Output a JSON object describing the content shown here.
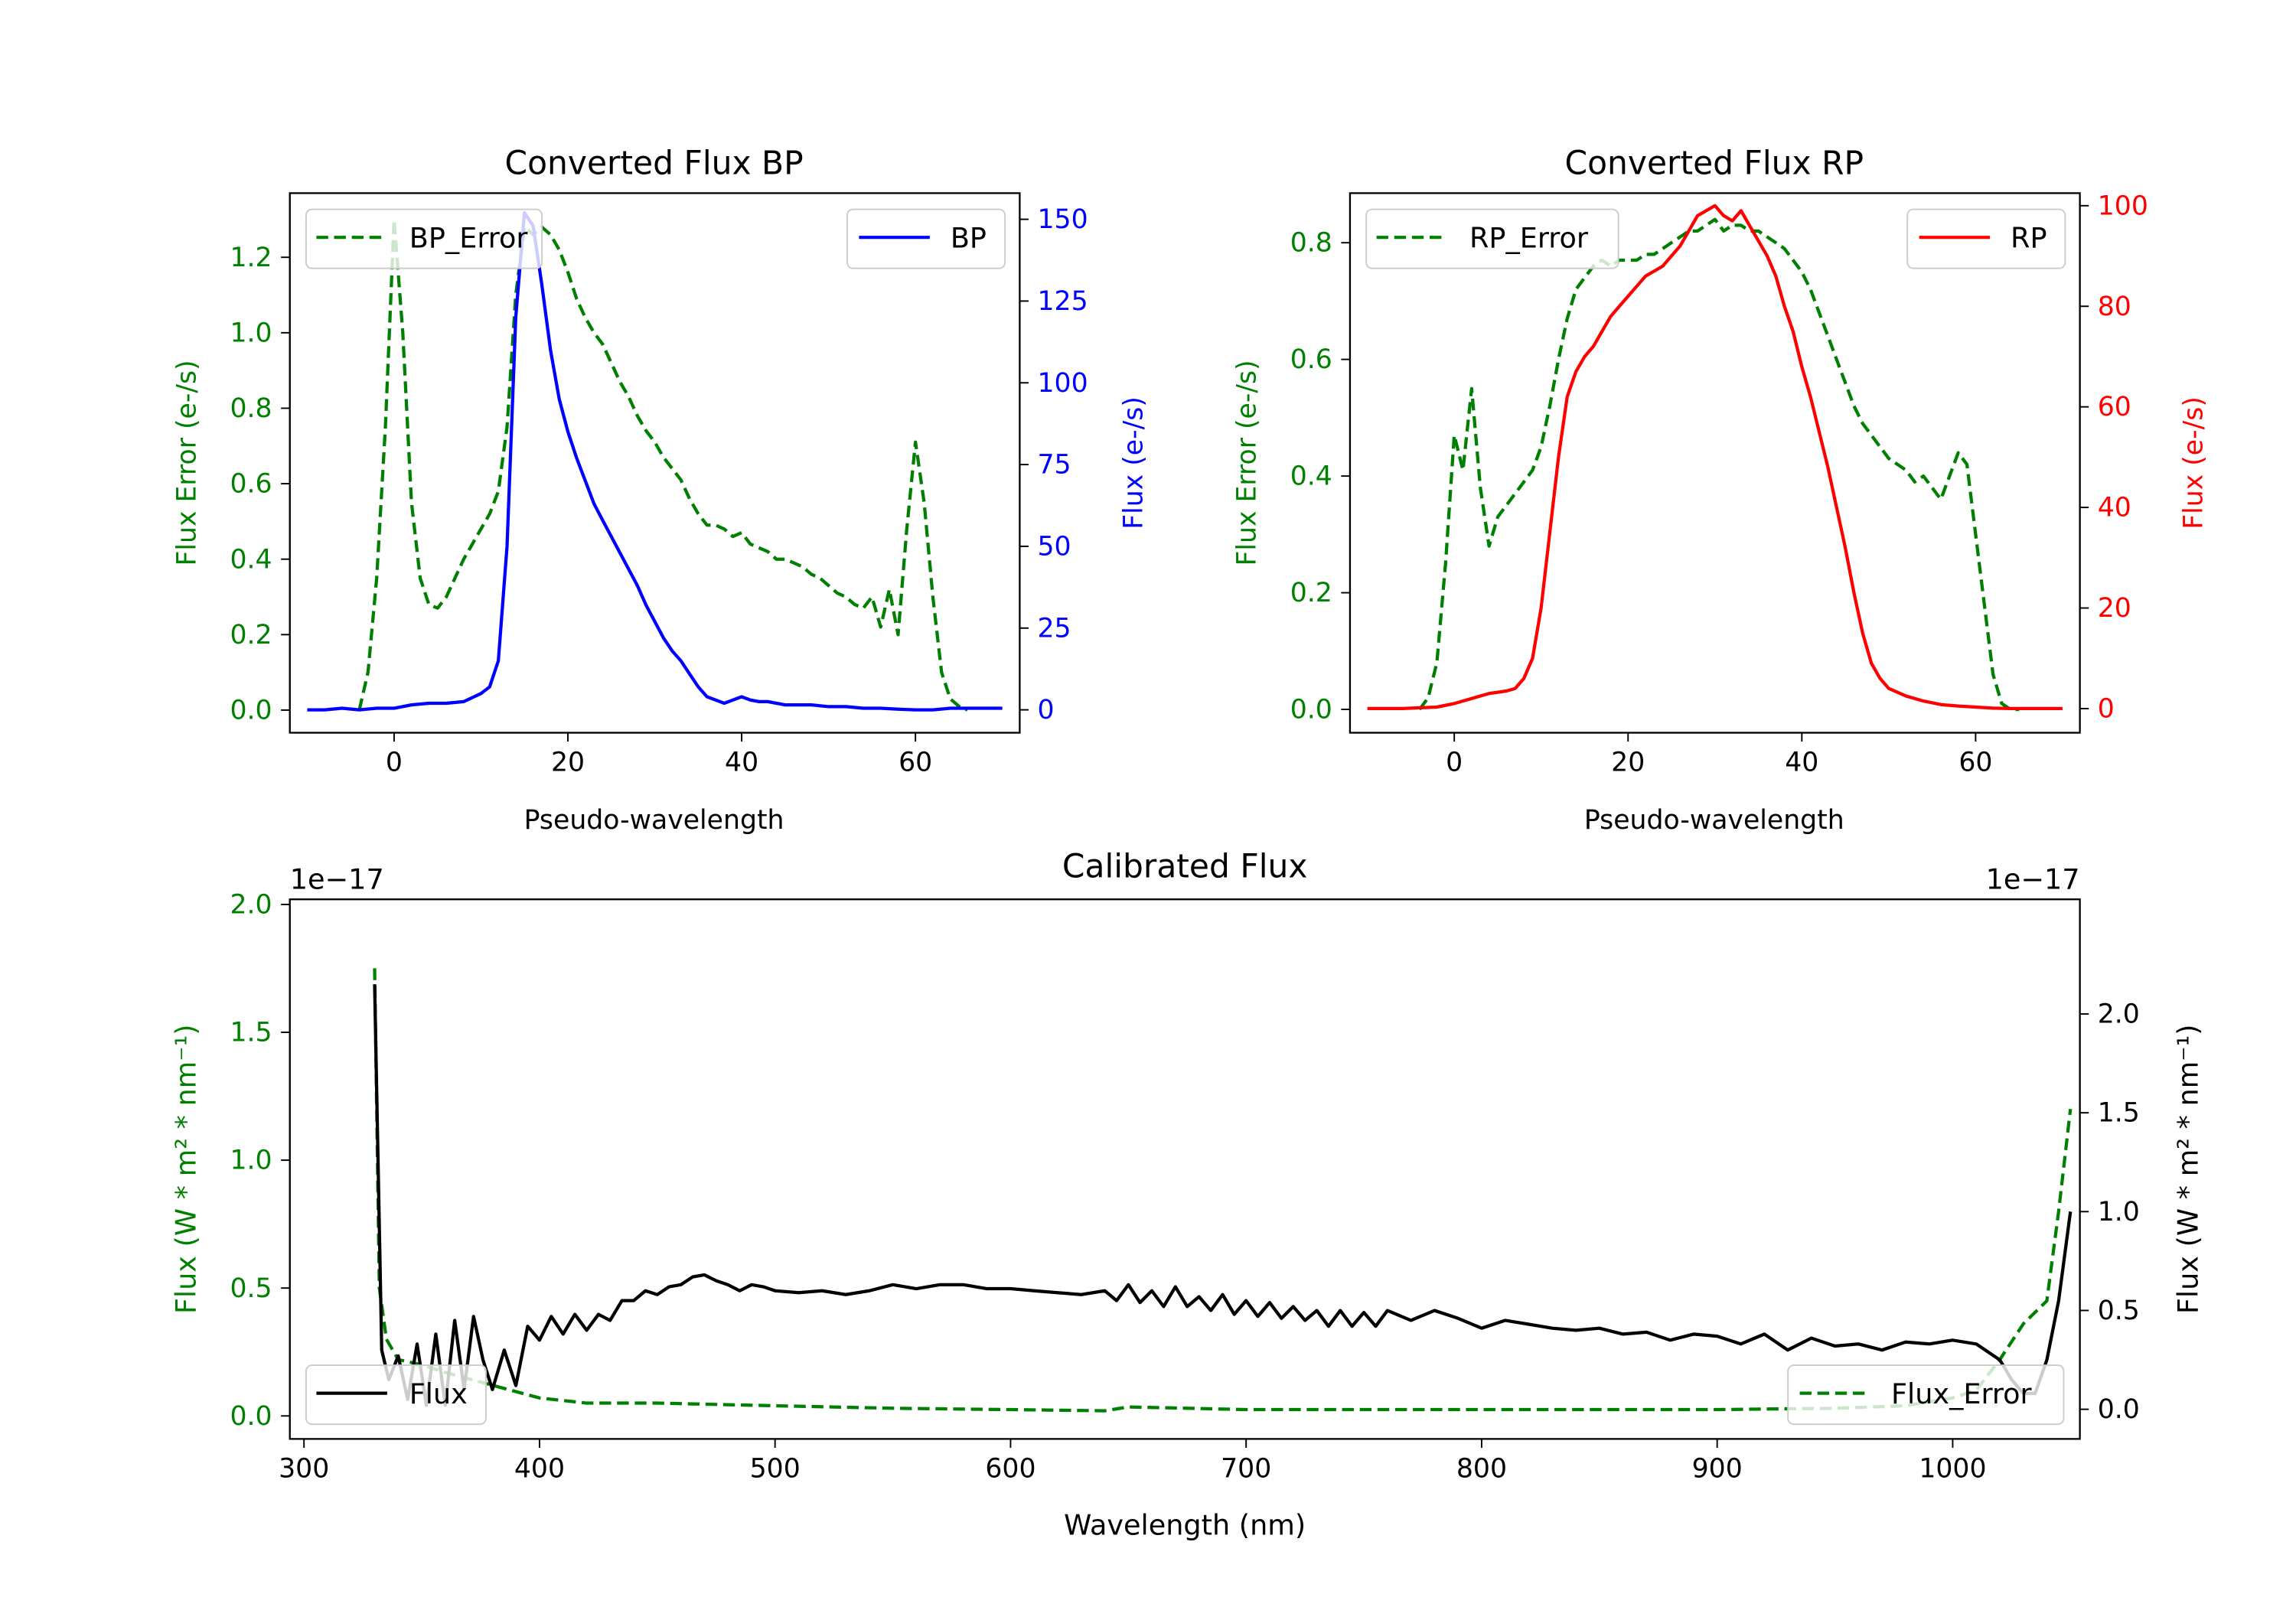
{
  "colors": {
    "bp": "#0000ff",
    "rp": "#ff0000",
    "error": "#008000",
    "flux": "#000000",
    "axis": "#000000"
  },
  "chart_data": [
    {
      "id": "bp",
      "type": "line",
      "title": "Converted Flux BP",
      "xlabel": "Pseudo-wavelength",
      "ylabel_left": "Flux Error (e-/s)",
      "ylabel_right": "Flux (e-/s)",
      "xlim": [
        -12,
        72
      ],
      "ylim_left": [
        -0.06,
        1.37
      ],
      "ylim_right": [
        -7,
        158
      ],
      "xticks": [
        0,
        20,
        40,
        60
      ],
      "yticks_left": [
        0.0,
        0.2,
        0.4,
        0.6,
        0.8,
        1.0,
        1.2
      ],
      "yticks_right": [
        0,
        25,
        50,
        75,
        100,
        125,
        150
      ],
      "legend_left": {
        "label": "BP_Error",
        "position": "upper-left",
        "style": "dashed"
      },
      "legend_right": {
        "label": "BP",
        "position": "upper-right",
        "style": "solid"
      },
      "series": [
        {
          "name": "BP_Error",
          "axis": "left",
          "style": "dashed",
          "x": [
            -4,
            -3,
            -2,
            -1,
            0,
            1,
            2,
            3,
            4,
            5,
            6,
            7,
            8,
            9,
            10,
            11,
            12,
            13,
            14,
            15,
            16,
            17,
            18,
            19,
            20,
            21,
            22,
            23,
            24,
            25,
            26,
            27,
            28,
            29,
            30,
            31,
            32,
            33,
            34,
            35,
            36,
            37,
            38,
            39,
            40,
            41,
            42,
            43,
            44,
            45,
            46,
            47,
            48,
            49,
            50,
            51,
            52,
            53,
            54,
            55,
            56,
            57,
            58,
            59,
            60,
            61,
            62,
            63,
            64,
            65,
            66
          ],
          "values": [
            0.0,
            0.1,
            0.35,
            0.75,
            1.3,
            1.0,
            0.55,
            0.35,
            0.28,
            0.27,
            0.3,
            0.35,
            0.4,
            0.44,
            0.48,
            0.52,
            0.58,
            0.75,
            1.1,
            1.28,
            1.26,
            1.28,
            1.26,
            1.22,
            1.16,
            1.09,
            1.04,
            1.0,
            0.97,
            0.92,
            0.87,
            0.83,
            0.78,
            0.74,
            0.71,
            0.67,
            0.64,
            0.61,
            0.56,
            0.52,
            0.49,
            0.49,
            0.48,
            0.46,
            0.47,
            0.44,
            0.43,
            0.42,
            0.4,
            0.4,
            0.39,
            0.38,
            0.36,
            0.35,
            0.33,
            0.31,
            0.3,
            0.28,
            0.27,
            0.3,
            0.22,
            0.32,
            0.2,
            0.48,
            0.71,
            0.55,
            0.3,
            0.1,
            0.03,
            0.01,
            0.0
          ]
        },
        {
          "name": "BP",
          "axis": "right",
          "style": "solid",
          "x": [
            -10,
            -8,
            -6,
            -4,
            -2,
            0,
            2,
            4,
            6,
            8,
            10,
            11,
            12,
            13,
            14,
            15,
            16,
            17,
            18,
            19,
            20,
            21,
            22,
            23,
            24,
            25,
            26,
            27,
            28,
            29,
            30,
            31,
            32,
            33,
            34,
            35,
            36,
            37,
            38,
            39,
            40,
            41,
            42,
            43,
            44,
            45,
            46,
            48,
            50,
            52,
            54,
            56,
            58,
            60,
            62,
            64,
            66,
            68,
            70
          ],
          "values": [
            0,
            0,
            0.5,
            0,
            0.5,
            0.5,
            1.5,
            2,
            2,
            2.5,
            5,
            7,
            15,
            50,
            120,
            152,
            148,
            130,
            110,
            95,
            85,
            77,
            70,
            63,
            58,
            53,
            48,
            43,
            38,
            32,
            27,
            22,
            18,
            15,
            11,
            7,
            4,
            3,
            2,
            3,
            4,
            3,
            2.5,
            2.5,
            2,
            1.5,
            1.5,
            1.5,
            1,
            1,
            0.5,
            0.5,
            0.2,
            0,
            0,
            0.5,
            0.5,
            0.5,
            0.5
          ]
        }
      ]
    },
    {
      "id": "rp",
      "type": "line",
      "title": "Converted Flux RP",
      "xlabel": "Pseudo-wavelength",
      "ylabel_left": "Flux Error (e-/s)",
      "ylabel_right": "Flux (e-/s)",
      "xlim": [
        -12,
        72
      ],
      "ylim_left": [
        -0.04,
        0.885
      ],
      "ylim_right": [
        -4.8,
        102.5
      ],
      "xticks": [
        0,
        20,
        40,
        60
      ],
      "yticks_left": [
        0.0,
        0.2,
        0.4,
        0.6,
        0.8
      ],
      "yticks_right": [
        0,
        20,
        40,
        60,
        80,
        100
      ],
      "legend_left": {
        "label": "RP_Error",
        "position": "upper-left",
        "style": "dashed"
      },
      "legend_right": {
        "label": "RP",
        "position": "upper-right",
        "style": "solid"
      },
      "series": [
        {
          "name": "RP_Error",
          "axis": "left",
          "style": "dashed",
          "x": [
            -4,
            -3,
            -2,
            -1,
            0,
            1,
            2,
            3,
            4,
            5,
            6,
            7,
            8,
            9,
            10,
            11,
            12,
            13,
            14,
            15,
            16,
            17,
            18,
            19,
            20,
            21,
            22,
            23,
            24,
            25,
            26,
            27,
            28,
            29,
            30,
            31,
            32,
            33,
            34,
            35,
            36,
            37,
            38,
            39,
            40,
            41,
            42,
            43,
            44,
            45,
            46,
            47,
            48,
            49,
            50,
            51,
            52,
            53,
            54,
            55,
            56,
            57,
            58,
            59,
            60,
            61,
            62,
            63,
            64,
            65
          ],
          "values": [
            0.0,
            0.02,
            0.08,
            0.25,
            0.47,
            0.41,
            0.55,
            0.38,
            0.28,
            0.33,
            0.35,
            0.37,
            0.39,
            0.41,
            0.45,
            0.52,
            0.6,
            0.67,
            0.72,
            0.74,
            0.76,
            0.77,
            0.76,
            0.77,
            0.77,
            0.77,
            0.78,
            0.78,
            0.79,
            0.8,
            0.81,
            0.82,
            0.82,
            0.83,
            0.84,
            0.82,
            0.83,
            0.83,
            0.82,
            0.82,
            0.81,
            0.8,
            0.79,
            0.77,
            0.75,
            0.72,
            0.68,
            0.64,
            0.6,
            0.56,
            0.52,
            0.49,
            0.47,
            0.45,
            0.43,
            0.42,
            0.41,
            0.39,
            0.4,
            0.38,
            0.36,
            0.4,
            0.44,
            0.42,
            0.3,
            0.18,
            0.06,
            0.01,
            0.0,
            0.0
          ]
        },
        {
          "name": "RP",
          "axis": "right",
          "style": "solid",
          "x": [
            -10,
            -6,
            -2,
            0,
            2,
            4,
            6,
            7,
            8,
            9,
            10,
            11,
            12,
            13,
            14,
            15,
            16,
            17,
            18,
            19,
            20,
            21,
            22,
            23,
            24,
            25,
            26,
            27,
            28,
            29,
            30,
            31,
            32,
            33,
            34,
            35,
            36,
            37,
            38,
            39,
            40,
            41,
            42,
            43,
            44,
            45,
            46,
            47,
            48,
            49,
            50,
            52,
            54,
            56,
            58,
            60,
            62,
            64,
            66,
            70
          ],
          "values": [
            0,
            0,
            0.3,
            1,
            2,
            3,
            3.5,
            4,
            6,
            10,
            20,
            35,
            50,
            62,
            67,
            70,
            72,
            75,
            78,
            80,
            82,
            84,
            86,
            87,
            88,
            90,
            92,
            95,
            98,
            99,
            100,
            98,
            97,
            99,
            96,
            93,
            90,
            86,
            80,
            75,
            68,
            62,
            55,
            48,
            40,
            32,
            23,
            15,
            9,
            6,
            4,
            2.5,
            1.5,
            0.8,
            0.5,
            0.3,
            0.1,
            0,
            0,
            0
          ]
        }
      ]
    },
    {
      "id": "cal",
      "type": "line",
      "title": "Calibrated Flux",
      "xlabel": "Wavelength (nm)",
      "ylabel_left": "Flux (W * m² * nm⁻¹)",
      "ylabel_right": "Flux (W * m² * nm⁻¹)",
      "offset_left": "1e−17",
      "offset_right": "1e−17",
      "xlim": [
        294,
        1054
      ],
      "ylim_left": [
        -0.09,
        2.02
      ],
      "ylim_right": [
        -0.15,
        2.58
      ],
      "xticks": [
        300,
        400,
        500,
        600,
        700,
        800,
        900,
        1000
      ],
      "yticks_left": [
        0.0,
        0.5,
        1.0,
        1.5,
        2.0
      ],
      "yticks_right": [
        0.0,
        0.5,
        1.0,
        1.5,
        2.0
      ],
      "legend_left": {
        "label": "Flux",
        "position": "lower-left",
        "style": "solid"
      },
      "legend_right": {
        "label": "Flux_Error",
        "position": "lower-right",
        "style": "dashed"
      },
      "series": [
        {
          "name": "Flux_Error",
          "axis": "left",
          "style": "dashed",
          "x": [
            330,
            332,
            335,
            340,
            350,
            360,
            380,
            400,
            420,
            450,
            500,
            550,
            600,
            640,
            650,
            700,
            800,
            900,
            950,
            980,
            1000,
            1010,
            1020,
            1030,
            1040,
            1045,
            1050
          ],
          "values": [
            1.75,
            0.5,
            0.3,
            0.22,
            0.2,
            0.17,
            0.12,
            0.07,
            0.05,
            0.05,
            0.04,
            0.03,
            0.025,
            0.02,
            0.035,
            0.025,
            0.025,
            0.025,
            0.03,
            0.04,
            0.07,
            0.1,
            0.22,
            0.36,
            0.45,
            0.8,
            1.2
          ]
        },
        {
          "name": "Flux",
          "axis": "right",
          "style": "solid",
          "x": [
            330,
            333,
            336,
            340,
            344,
            348,
            352,
            356,
            360,
            364,
            368,
            372,
            376,
            380,
            385,
            390,
            395,
            400,
            405,
            410,
            415,
            420,
            425,
            430,
            435,
            440,
            445,
            450,
            455,
            460,
            465,
            470,
            475,
            480,
            485,
            490,
            495,
            500,
            510,
            520,
            530,
            540,
            550,
            560,
            570,
            580,
            590,
            600,
            610,
            620,
            630,
            640,
            645,
            650,
            655,
            660,
            665,
            670,
            675,
            680,
            685,
            690,
            695,
            700,
            705,
            710,
            715,
            720,
            725,
            730,
            735,
            740,
            745,
            750,
            755,
            760,
            770,
            780,
            790,
            800,
            810,
            820,
            830,
            840,
            850,
            860,
            870,
            880,
            890,
            900,
            910,
            920,
            930,
            940,
            950,
            960,
            970,
            980,
            990,
            1000,
            1010,
            1020,
            1025,
            1030,
            1035,
            1040,
            1045,
            1050
          ],
          "values": [
            2.15,
            0.3,
            0.15,
            0.27,
            0.05,
            0.33,
            0.02,
            0.38,
            0.02,
            0.45,
            0.1,
            0.47,
            0.25,
            0.1,
            0.3,
            0.12,
            0.42,
            0.35,
            0.47,
            0.38,
            0.48,
            0.4,
            0.48,
            0.45,
            0.55,
            0.55,
            0.6,
            0.58,
            0.62,
            0.63,
            0.67,
            0.68,
            0.65,
            0.63,
            0.6,
            0.63,
            0.62,
            0.6,
            0.59,
            0.6,
            0.58,
            0.6,
            0.63,
            0.61,
            0.63,
            0.63,
            0.61,
            0.61,
            0.6,
            0.59,
            0.58,
            0.6,
            0.55,
            0.63,
            0.54,
            0.6,
            0.52,
            0.62,
            0.52,
            0.57,
            0.5,
            0.58,
            0.48,
            0.55,
            0.47,
            0.54,
            0.46,
            0.52,
            0.45,
            0.5,
            0.42,
            0.5,
            0.42,
            0.49,
            0.42,
            0.5,
            0.45,
            0.5,
            0.46,
            0.41,
            0.45,
            0.43,
            0.41,
            0.4,
            0.41,
            0.38,
            0.39,
            0.35,
            0.38,
            0.37,
            0.33,
            0.38,
            0.3,
            0.36,
            0.32,
            0.33,
            0.3,
            0.34,
            0.33,
            0.35,
            0.33,
            0.25,
            0.15,
            0.08,
            0.08,
            0.25,
            0.55,
            1.0
          ]
        }
      ]
    }
  ]
}
